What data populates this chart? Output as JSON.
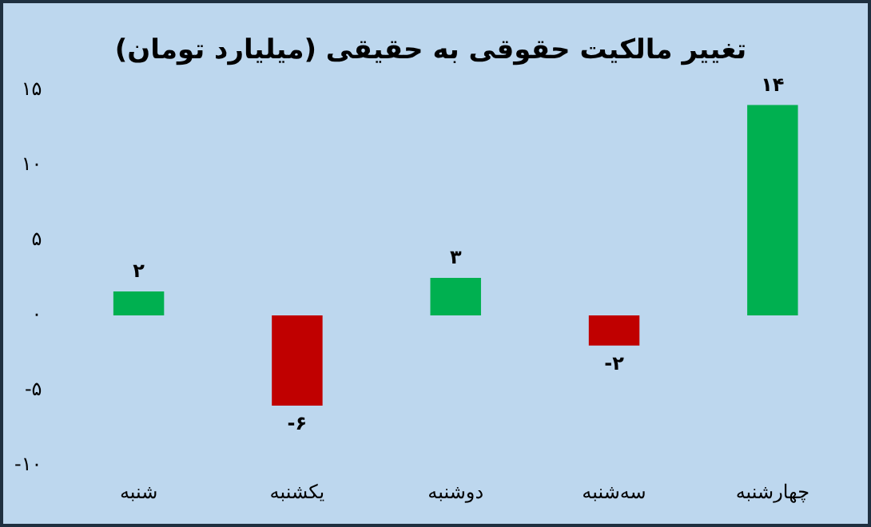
{
  "chart_data": {
    "type": "bar",
    "title": "تغییر مالکیت حقوقی به حقیقی (میلیارد تومان)",
    "categories": [
      "شنبه",
      "یکشنبه",
      "دوشنبه",
      "سه‌شنبه",
      "چهارشنبه"
    ],
    "values": [
      1.6,
      -6,
      2.5,
      -2,
      14
    ],
    "colors": [
      "#00b050",
      "#c00000",
      "#00b050",
      "#c00000",
      "#00b050"
    ],
    "value_labels": [
      "۲",
      "-۶",
      "۳",
      "-۲",
      "۱۴"
    ],
    "ylim": [
      -10,
      15
    ],
    "yticks": [
      {
        "value": -10,
        "label": "-۱۰"
      },
      {
        "value": -5,
        "label": "-۵"
      },
      {
        "value": 0,
        "label": "۰"
      },
      {
        "value": 5,
        "label": "۵"
      },
      {
        "value": 10,
        "label": "۱۰"
      },
      {
        "value": 15,
        "label": "۱۵"
      }
    ],
    "grid": false,
    "legend": false
  }
}
